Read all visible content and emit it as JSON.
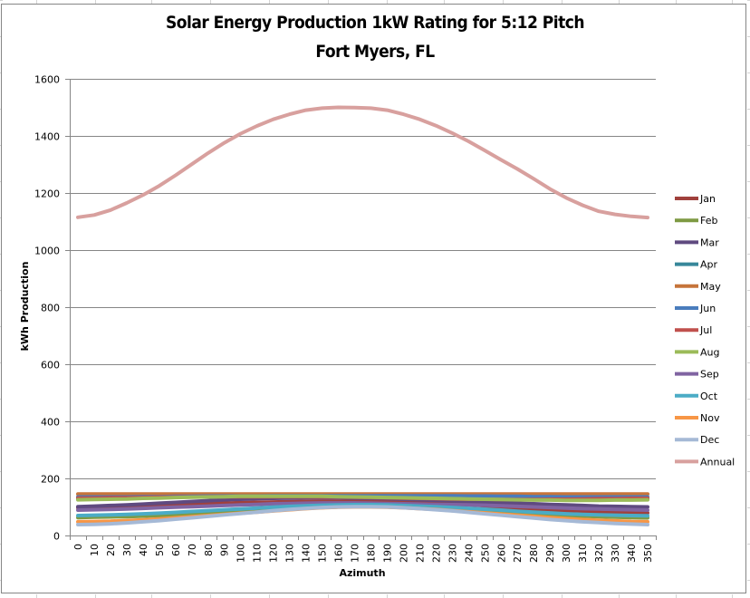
{
  "chart_data": {
    "type": "line",
    "title": "Solar Energy Production 1kW Rating for 5:12 Pitch",
    "subtitle": "Fort Myers, FL",
    "xlabel": "Azimuth",
    "ylabel": "kWh Production",
    "ylim": [
      0,
      1600
    ],
    "yticks": [
      0,
      200,
      400,
      600,
      800,
      1000,
      1200,
      1400,
      1600
    ],
    "grid": true,
    "legend_position": "right",
    "categories": [
      "0",
      "10",
      "20",
      "30",
      "40",
      "50",
      "60",
      "70",
      "80",
      "90",
      "100",
      "110",
      "120",
      "130",
      "140",
      "150",
      "160",
      "170",
      "180",
      "190",
      "200",
      "210",
      "220",
      "230",
      "240",
      "250",
      "260",
      "270",
      "280",
      "290",
      "300",
      "310",
      "320",
      "330",
      "340",
      "350"
    ],
    "series": [
      {
        "name": "Jan",
        "color": "#a0413c",
        "values": [
          97,
          98,
          99,
          101,
          103,
          105,
          107,
          109,
          111,
          113,
          115,
          116,
          117,
          118,
          119,
          120,
          120,
          120,
          120,
          119,
          118,
          116,
          114,
          111,
          108,
          104,
          100,
          96,
          92,
          89,
          86,
          83,
          81,
          80,
          79,
          79
        ]
      },
      {
        "name": "Feb",
        "color": "#7e9a43",
        "values": [
          63,
          64,
          65,
          66,
          68,
          70,
          72,
          75,
          78,
          81,
          84,
          87,
          90,
          93,
          96,
          98,
          100,
          101,
          101,
          100,
          99,
          97,
          95,
          92,
          89,
          86,
          83,
          79,
          76,
          73,
          70,
          68,
          66,
          64,
          63,
          62
        ]
      },
      {
        "name": "Mar",
        "color": "#5f4a80",
        "values": [
          101,
          103,
          105,
          107,
          110,
          113,
          116,
          119,
          122,
          125,
          127,
          129,
          130,
          131,
          132,
          132,
          132,
          131,
          130,
          129,
          127,
          125,
          123,
          121,
          119,
          117,
          115,
          113,
          111,
          109,
          107,
          105,
          103,
          102,
          101,
          100
        ]
      },
      {
        "name": "Apr",
        "color": "#37879a",
        "values": [
          127,
          128,
          129,
          130,
          132,
          134,
          135,
          136,
          137,
          138,
          139,
          139,
          139,
          139,
          139,
          139,
          139,
          138,
          138,
          137,
          136,
          135,
          134,
          133,
          132,
          131,
          130,
          129,
          128,
          128,
          127,
          127,
          127,
          127,
          127,
          127
        ]
      },
      {
        "name": "May",
        "color": "#c6743a",
        "values": [
          145,
          145,
          145,
          145,
          145,
          145,
          145,
          145,
          145,
          145,
          145,
          145,
          145,
          145,
          145,
          145,
          145,
          145,
          145,
          145,
          145,
          145,
          145,
          145,
          145,
          145,
          145,
          145,
          145,
          145,
          145,
          145,
          145,
          145,
          145,
          145
        ]
      },
      {
        "name": "Jun",
        "color": "#4a7dbd",
        "values": [
          135,
          135,
          135,
          135,
          136,
          136,
          137,
          137,
          138,
          138,
          138,
          138,
          139,
          139,
          139,
          139,
          139,
          139,
          139,
          139,
          139,
          139,
          139,
          139,
          138,
          138,
          137,
          137,
          136,
          136,
          135,
          135,
          135,
          135,
          135,
          135
        ]
      },
      {
        "name": "Jul",
        "color": "#c0504d",
        "values": [
          131,
          131,
          132,
          132,
          133,
          134,
          135,
          135,
          136,
          136,
          136,
          136,
          136,
          136,
          136,
          135,
          135,
          134,
          133,
          132,
          131,
          130,
          129,
          128,
          127,
          127,
          126,
          126,
          126,
          127,
          127,
          128,
          129,
          129,
          130,
          130
        ]
      },
      {
        "name": "Aug",
        "color": "#9bbb59",
        "values": [
          125,
          126,
          127,
          128,
          130,
          131,
          133,
          134,
          135,
          136,
          137,
          137,
          137,
          137,
          137,
          137,
          136,
          135,
          134,
          133,
          132,
          131,
          130,
          129,
          128,
          127,
          126,
          125,
          124,
          124,
          123,
          123,
          123,
          124,
          124,
          125
        ]
      },
      {
        "name": "Sep",
        "color": "#8064a2",
        "values": [
          89,
          90,
          91,
          93,
          95,
          97,
          99,
          101,
          103,
          105,
          107,
          109,
          111,
          112,
          113,
          114,
          114,
          114,
          113,
          112,
          111,
          110,
          109,
          108,
          107,
          106,
          104,
          102,
          100,
          98,
          96,
          94,
          93,
          91,
          90,
          89
        ]
      },
      {
        "name": "Oct",
        "color": "#4bacc6",
        "values": [
          70,
          71,
          72,
          74,
          76,
          78,
          81,
          84,
          87,
          90,
          93,
          96,
          99,
          102,
          104,
          106,
          107,
          108,
          108,
          107,
          105,
          103,
          101,
          98,
          95,
          92,
          89,
          85,
          82,
          79,
          76,
          74,
          72,
          71,
          70,
          69
        ]
      },
      {
        "name": "Nov",
        "color": "#f79646",
        "values": [
          48,
          49,
          50,
          52,
          55,
          58,
          62,
          66,
          70,
          74,
          78,
          82,
          86,
          90,
          94,
          97,
          99,
          100,
          100,
          99,
          97,
          94,
          91,
          87,
          83,
          79,
          75,
          71,
          67,
          63,
          59,
          56,
          53,
          51,
          49,
          48
        ]
      },
      {
        "name": "Dec",
        "color": "#a5b9d6",
        "values": [
          38,
          39,
          41,
          44,
          48,
          52,
          57,
          62,
          67,
          72,
          77,
          82,
          87,
          91,
          95,
          98,
          100,
          101,
          101,
          100,
          97,
          94,
          90,
          86,
          81,
          76,
          71,
          66,
          61,
          56,
          52,
          48,
          45,
          42,
          40,
          38
        ]
      },
      {
        "name": "Annual",
        "color": "#d8a09e",
        "values": [
          1115,
          1123,
          1140,
          1165,
          1193,
          1225,
          1262,
          1301,
          1340,
          1376,
          1408,
          1435,
          1458,
          1476,
          1490,
          1497,
          1500,
          1499,
          1497,
          1490,
          1476,
          1458,
          1436,
          1410,
          1381,
          1349,
          1316,
          1284,
          1250,
          1214,
          1183,
          1157,
          1136,
          1125,
          1118,
          1114
        ]
      }
    ]
  }
}
